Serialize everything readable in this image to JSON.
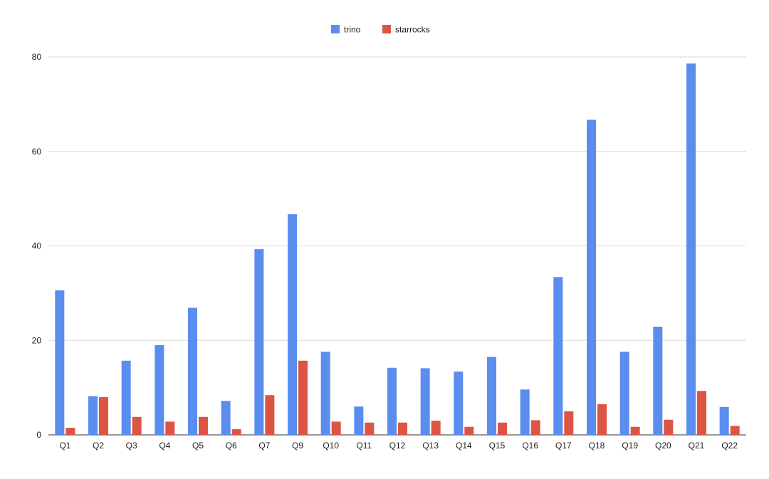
{
  "chart_data": {
    "type": "bar",
    "categories": [
      "Q1",
      "Q2",
      "Q3",
      "Q4",
      "Q5",
      "Q6",
      "Q7",
      "Q9",
      "Q10",
      "Q11",
      "Q12",
      "Q13",
      "Q14",
      "Q15",
      "Q16",
      "Q17",
      "Q18",
      "Q19",
      "Q20",
      "Q21",
      "Q22"
    ],
    "series": [
      {
        "name": "trino",
        "color": "#5b8def",
        "values": [
          30.6,
          8.2,
          15.7,
          19.0,
          26.9,
          7.2,
          39.3,
          46.7,
          17.6,
          6.0,
          14.2,
          14.1,
          13.4,
          16.5,
          9.6,
          33.4,
          66.7,
          17.6,
          22.9,
          78.6,
          5.9
        ]
      },
      {
        "name": "starrocks",
        "color": "#dc5544",
        "values": [
          1.5,
          8.0,
          3.8,
          2.8,
          3.8,
          1.2,
          8.4,
          15.7,
          2.8,
          2.6,
          2.6,
          3.0,
          1.7,
          2.6,
          3.1,
          5.0,
          6.5,
          1.7,
          3.2,
          9.3,
          1.9
        ]
      }
    ],
    "y_ticks": [
      "0",
      "20",
      "40",
      "60",
      "80"
    ],
    "ylim": [
      0,
      80
    ],
    "grid": true,
    "legend_position": "top-center"
  }
}
